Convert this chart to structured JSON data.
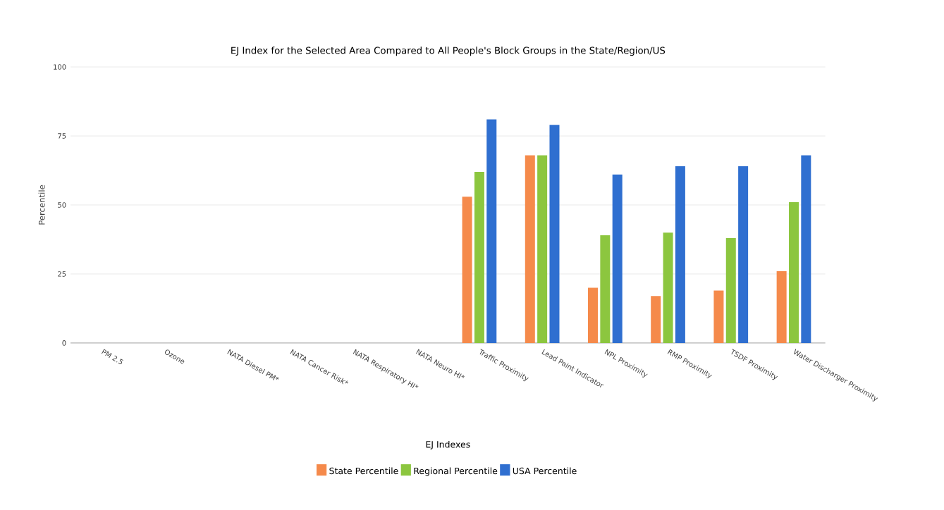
{
  "chart_data": {
    "type": "bar",
    "title": "EJ Index for the Selected Area Compared to All People's Block Groups in the State/Region/US",
    "xlabel": "EJ Indexes",
    "ylabel": "Percentile",
    "categories": [
      "PM 2.5",
      "Ozone",
      "NATA Diesel PM*",
      "NATA Cancer Risk*",
      "NATA Respiratory HI*",
      "NATA Neuro HI*",
      "Traffic Proximity",
      "Lead Paint Indicator",
      "NPL Proximity",
      "RMP Proximity",
      "TSDF Proximity",
      "Water Discharger Proximity"
    ],
    "series": [
      {
        "name": "State Percentile",
        "color": "#f58a4b",
        "values": [
          null,
          null,
          null,
          null,
          null,
          null,
          53,
          68,
          20,
          17,
          19,
          26
        ]
      },
      {
        "name": "Regional Percentile",
        "color": "#8cc63f",
        "values": [
          null,
          null,
          null,
          null,
          null,
          null,
          62,
          68,
          39,
          40,
          38,
          51
        ]
      },
      {
        "name": "USA Percentile",
        "color": "#2f6fd0",
        "values": [
          null,
          null,
          null,
          null,
          null,
          null,
          81,
          79,
          61,
          64,
          64,
          68
        ]
      }
    ],
    "ylim": [
      0,
      100
    ],
    "yticks": [
      0,
      25,
      50,
      75,
      100
    ],
    "grid": "y",
    "legend": "bottom"
  }
}
